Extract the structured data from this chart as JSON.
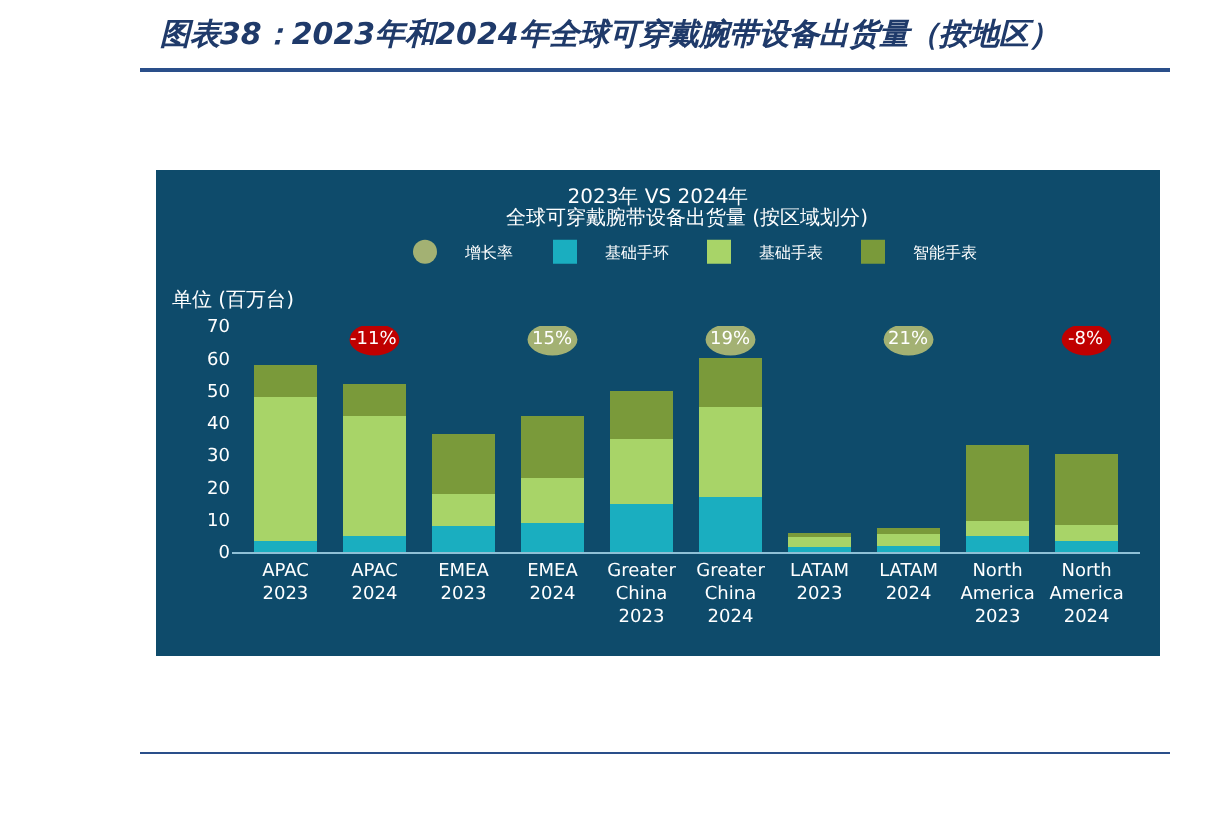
{
  "chart_data": {
    "type": "bar",
    "title": "图表38：2023年和2024年全球可穿戴腕带设备出货量（按地区）",
    "subtitle": "2023年 VS 2024年",
    "ylabel": "单位 (百万台)",
    "annotations": [
      "全球可穿戴腕带设备出货量 (按区域划分)",
      {
        "text": "-11%",
        "x": "APAC 2024"
      },
      {
        "text": "15%",
        "x": "EMEA 2024"
      },
      {
        "text": "19%",
        "x": "Greater China 2024"
      },
      {
        "text": "21%",
        "x": "LATAM 2024"
      },
      {
        "text": "-8%",
        "x": "North America 2024"
      }
    ],
    "categories": [
      "APAC 2023",
      "APAC 2024",
      "EMEA 2023",
      "EMEA 2024",
      "Greater China 2023",
      "Greater China 2024",
      "LATAM 2023",
      "LATAM 2024",
      "North America 2023",
      "North America 2024"
    ],
    "stacked": true,
    "ylim": [
      0,
      70
    ],
    "yticks": [
      0,
      10,
      20,
      30,
      40,
      50,
      60,
      70
    ],
    "grid": false,
    "legend": "top",
    "series": [
      {
        "name": "基础手环",
        "color": "#1aaec0",
        "values": [
          3.5,
          5,
          8,
          9,
          15,
          17,
          1.5,
          2,
          5,
          3.5
        ]
      },
      {
        "name": "基础手表",
        "color": "#a8d468",
        "values": [
          44.5,
          37,
          10,
          14,
          20,
          28,
          3,
          3.5,
          4.5,
          5
        ]
      },
      {
        "name": "智能手表",
        "color": "#7a9a3a",
        "values": [
          10,
          10,
          18.5,
          19,
          15,
          15,
          1.5,
          2,
          23.5,
          22
        ]
      },
      {
        "name": "增长率",
        "type": "scatter",
        "marker": "circle",
        "color": "#a3b173",
        "values": [
          null,
          null,
          null,
          null,
          null,
          null,
          null,
          null,
          null,
          null
        ]
      }
    ]
  }
}
